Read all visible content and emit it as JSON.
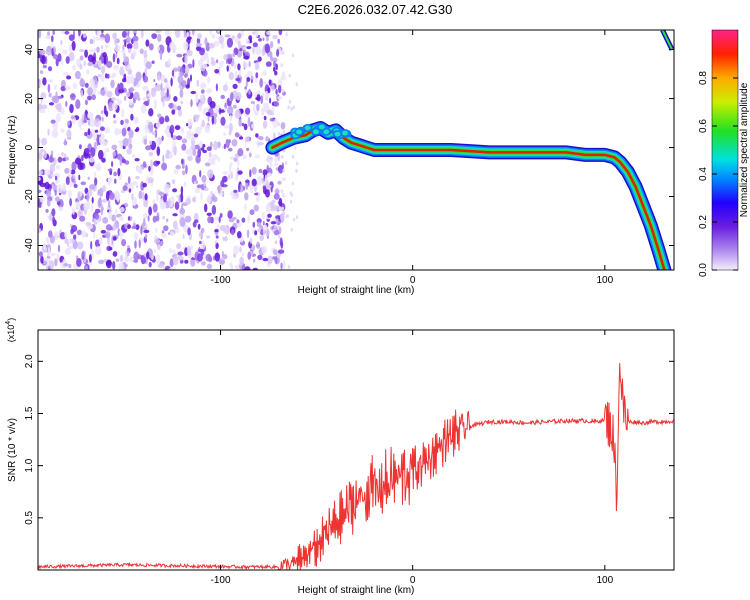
{
  "title": "C2E6.2026.032.07.42.G30",
  "chart_data": [
    {
      "type": "heatmap",
      "xlabel": "Height of straight line (km)",
      "ylabel": "Frequency (Hz)",
      "xlim": [
        -195,
        136
      ],
      "ylim": [
        -50,
        48
      ],
      "x_ticks": [
        -100,
        0,
        100
      ],
      "y_ticks": [
        -40,
        -20,
        0,
        20,
        40
      ],
      "noise_region_x": [
        -195,
        -70
      ],
      "ridge": {
        "x": [
          -73,
          -68,
          -62,
          -56,
          -52,
          -48,
          -44,
          -40,
          -36,
          -32,
          -28,
          -24,
          -20,
          -15,
          -10,
          -5,
          0,
          10,
          20,
          40,
          60,
          80,
          90,
          95,
          100,
          105,
          108,
          112,
          116,
          120,
          124,
          128,
          131
        ],
        "y": [
          0,
          2,
          4,
          5,
          7,
          8,
          6,
          7,
          4,
          2,
          1,
          0,
          -1,
          -1,
          -1,
          -1,
          -1,
          -1,
          -1,
          -2,
          -2,
          -2,
          -3,
          -3,
          -3,
          -4,
          -6,
          -10,
          -16,
          -24,
          -32,
          -42,
          -50
        ]
      },
      "colorbar": {
        "label": "Normalized spectral amplitude",
        "min": 0.0,
        "max": 1.0,
        "ticks": [
          "0.0",
          "0.2",
          "0.4",
          "0.6",
          "0.8"
        ]
      }
    },
    {
      "type": "line",
      "xlabel": "Height of straight line (km)",
      "ylabel": "SNR (10 * v/v)",
      "y_multiplier": "(x10",
      "y_multiplier_exp": "4",
      "xlim": [
        -195,
        136
      ],
      "ylim": [
        0,
        2.3
      ],
      "x_ticks": [
        -100,
        0,
        100
      ],
      "y_ticks": [
        0.5,
        1.0,
        1.5,
        2.0
      ],
      "y_tick_labels": [
        "0.5",
        "1.0",
        "1.5",
        "2.0"
      ],
      "series": [
        {
          "color": "#ee3333",
          "x": [
            -195,
            -150,
            -120,
            -90,
            -70,
            -60,
            -50,
            -45,
            -40,
            -35,
            -30,
            -25,
            -20,
            -15,
            -10,
            -5,
            0,
            5,
            10,
            15,
            20,
            25,
            30,
            35,
            40,
            50,
            60,
            70,
            80,
            90,
            95,
            100,
            103,
            105,
            106,
            107,
            108,
            109,
            110,
            112,
            115,
            120,
            125,
            130,
            136
          ],
          "y": [
            0.03,
            0.05,
            0.04,
            0.03,
            0.03,
            0.07,
            0.22,
            0.35,
            0.45,
            0.55,
            0.65,
            0.72,
            0.78,
            0.82,
            0.86,
            0.9,
            0.95,
            1.02,
            1.1,
            1.2,
            1.28,
            1.34,
            1.38,
            1.4,
            1.42,
            1.42,
            1.41,
            1.42,
            1.43,
            1.43,
            1.42,
            1.44,
            1.4,
            1.2,
            0.6,
            1.5,
            2.0,
            1.7,
            1.48,
            1.42,
            1.42,
            1.41,
            1.42,
            1.42,
            1.43
          ]
        }
      ]
    }
  ]
}
